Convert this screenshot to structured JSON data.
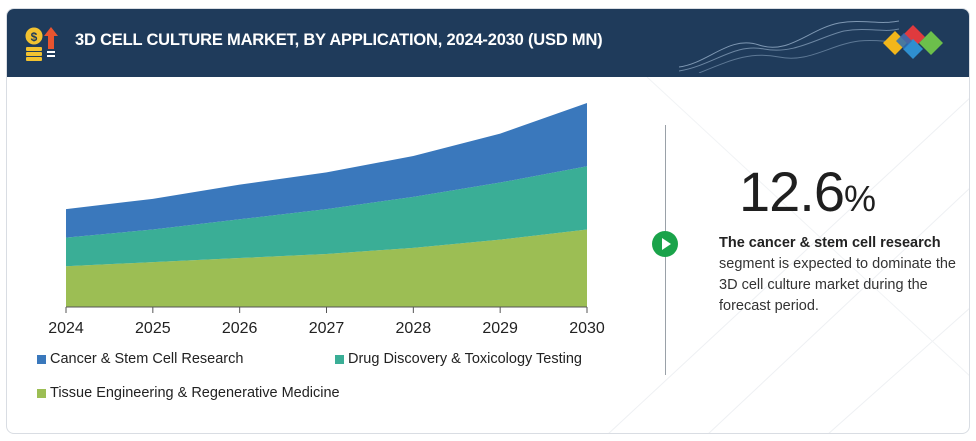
{
  "header": {
    "title": "3D CELL CULTURE MARKET, BY APPLICATION, 2024-2030 (USD MN)"
  },
  "colors": {
    "header_bg": "#1f3b5b",
    "accent_green": "#1aa34a"
  },
  "chart_data": {
    "type": "area",
    "stacked": true,
    "x": [
      "2024",
      "2025",
      "2026",
      "2027",
      "2028",
      "2029",
      "2030"
    ],
    "ylim": [
      0,
      100
    ],
    "grid": false,
    "legend_position": "bottom",
    "series": [
      {
        "name": "Tissue Engineering & Regenerative Medicine",
        "color": "#9cbe54",
        "values": [
          20,
          22,
          24,
          26,
          29,
          33,
          38
        ]
      },
      {
        "name": "Drug Discovery & Toxicology Testing",
        "color": "#3aae96",
        "values": [
          14,
          16,
          19,
          22,
          25,
          28,
          31
        ]
      },
      {
        "name": "Cancer & Stem Cell Research",
        "color": "#3a78bc",
        "values": [
          14,
          15,
          17,
          18,
          20,
          24,
          31
        ]
      }
    ],
    "legend": [
      {
        "name": "Cancer & Stem Cell Research",
        "color": "#3a78bc"
      },
      {
        "name": "Drug Discovery & Toxicology Testing",
        "color": "#3aae96"
      },
      {
        "name": "Tissue Engineering & Regenerative Medicine",
        "color": "#9cbe54"
      }
    ]
  },
  "highlight": {
    "value": "12.6",
    "unit": "%",
    "desc_bold": "The cancer & stem cell research",
    "desc_rest": " segment is expected to dominate the 3D cell culture market during the forecast period."
  }
}
